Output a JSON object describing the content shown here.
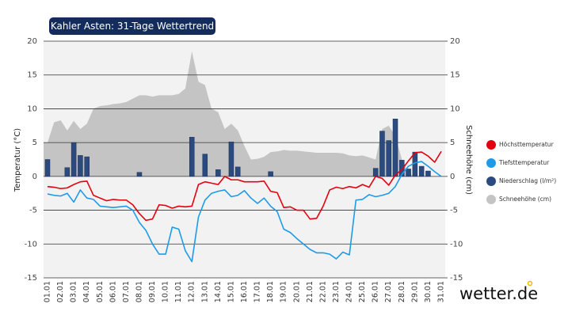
{
  "chart_data": {
    "type": "combo",
    "title": "Kahler Asten: 31-Tage Wettertrend",
    "y_label": "Temperatur (°C)",
    "y2_label": "Schneehöhe (cm)",
    "categories": [
      "01.01",
      null,
      "02.01",
      null,
      "03.01",
      null,
      "04.01",
      null,
      "05.01",
      null,
      "06.01",
      null,
      "07.01",
      null,
      "08.01",
      null,
      "09.01",
      null,
      "10.01",
      null,
      "11.01",
      null,
      "12.01",
      null,
      "13.01",
      null,
      "14.01",
      null,
      "15.01",
      null,
      "16.01",
      null,
      "17.01",
      null,
      "18.01",
      null,
      "19.01",
      null,
      "20.01",
      null,
      "21.01",
      null,
      "22.01",
      null,
      "23.01",
      null,
      "24.01",
      null,
      "25.01",
      null,
      "26.01",
      null,
      "27.01",
      null,
      "28.01",
      null,
      "29.01",
      null,
      "30.01",
      null,
      "31.01"
    ],
    "ylim": [
      -15,
      20
    ],
    "yticks": [
      -15,
      -10,
      -5,
      0,
      5,
      10,
      15,
      20
    ],
    "y2lim": [
      -15,
      20
    ],
    "y2ticks": [
      -15,
      -10,
      -5,
      0,
      5,
      10,
      15,
      20
    ],
    "grid": true,
    "series": [
      {
        "name": "Schneehöhe (cm)",
        "type": "area",
        "axis": "y2",
        "color": "#c4c4c4",
        "values": [
          5,
          8,
          8.3,
          6.8,
          8.2,
          7,
          7.8,
          10,
          10.4,
          10.5,
          10.7,
          10.8,
          11,
          11.5,
          12,
          12,
          11.8,
          12,
          12,
          12,
          12.2,
          13,
          18.5,
          14,
          13.5,
          10,
          9.5,
          7,
          7.8,
          6.8,
          4.5,
          2.5,
          2.6,
          2.9,
          3.6,
          3.7,
          3.9,
          3.8,
          3.8,
          3.7,
          3.6,
          3.5,
          3.5,
          3.5,
          3.5,
          3.4,
          3.1,
          3,
          3.1,
          2.8,
          2.5,
          7,
          7.5,
          6,
          2.5,
          0.5,
          0,
          0,
          0,
          0,
          0
        ]
      },
      {
        "name": "Niederschlag (l/m²)",
        "type": "bar",
        "color": "#2b4a7f",
        "values": [
          2.5,
          0,
          0,
          1.3,
          5,
          3.1,
          2.9,
          0,
          0,
          0,
          0,
          0,
          0,
          0,
          0.6,
          0,
          0,
          0,
          0,
          0,
          0,
          0,
          5.8,
          0,
          3.3,
          0,
          1,
          0,
          5.1,
          1.4,
          0,
          0,
          0,
          0,
          0.7,
          0,
          0,
          0,
          0,
          0,
          0,
          0,
          0,
          0,
          0,
          0,
          0,
          0,
          0,
          0,
          1.2,
          6.7,
          5.3,
          8.5,
          2.4,
          1.1,
          3.6,
          1.5,
          0.8,
          0,
          0
        ]
      },
      {
        "name": "Höchsttemperatur",
        "type": "line",
        "color": "#e3000f",
        "values": [
          -1.5,
          -1.6,
          -1.8,
          -1.7,
          -1.2,
          -0.8,
          -0.7,
          -2.8,
          -3.2,
          -3.6,
          -3.4,
          -3.5,
          -3.5,
          -4.2,
          -5.5,
          -6.5,
          -6.3,
          -4.2,
          -4.3,
          -4.7,
          -4.4,
          -4.5,
          -4.4,
          -1.2,
          -0.8,
          -1,
          -1.2,
          0,
          -0.5,
          -0.5,
          -0.8,
          -0.8,
          -0.8,
          -0.7,
          -2.2,
          -2.4,
          -4.6,
          -4.5,
          -5,
          -5,
          -6.3,
          -6.2,
          -4.4,
          -2,
          -1.6,
          -1.8,
          -1.5,
          -1.7,
          -1.2,
          -1.6,
          0,
          -0.3,
          -1.3,
          0.2,
          1,
          2.3,
          3.5,
          3.6,
          3,
          2.1,
          3.7
        ]
      },
      {
        "name": "Tiefsttemperatur",
        "type": "line",
        "color": "#1e9be8",
        "values": [
          -2.6,
          -2.8,
          -2.9,
          -2.5,
          -3.8,
          -2,
          -3.2,
          -3.4,
          -4.4,
          -4.5,
          -4.6,
          -4.5,
          -4.4,
          -5,
          -6.8,
          -8,
          -10,
          -11.5,
          -11.5,
          -7.5,
          -7.8,
          -11,
          -12.6,
          -6,
          -3.5,
          -2.5,
          -2.2,
          -2,
          -3,
          -2.8,
          -2.1,
          -3.2,
          -4,
          -3.2,
          -4.4,
          -5.2,
          -7.8,
          -8.3,
          -9.2,
          -10,
          -10.8,
          -11.3,
          -11.3,
          -11.5,
          -12.2,
          -11.2,
          -11.6,
          -3.5,
          -3.4,
          -2.7,
          -3,
          -2.8,
          -2.5,
          -1.5,
          0.3,
          1.5,
          2,
          2.2,
          1.5,
          0.7,
          0
        ]
      }
    ]
  },
  "logo": "wetter.de"
}
